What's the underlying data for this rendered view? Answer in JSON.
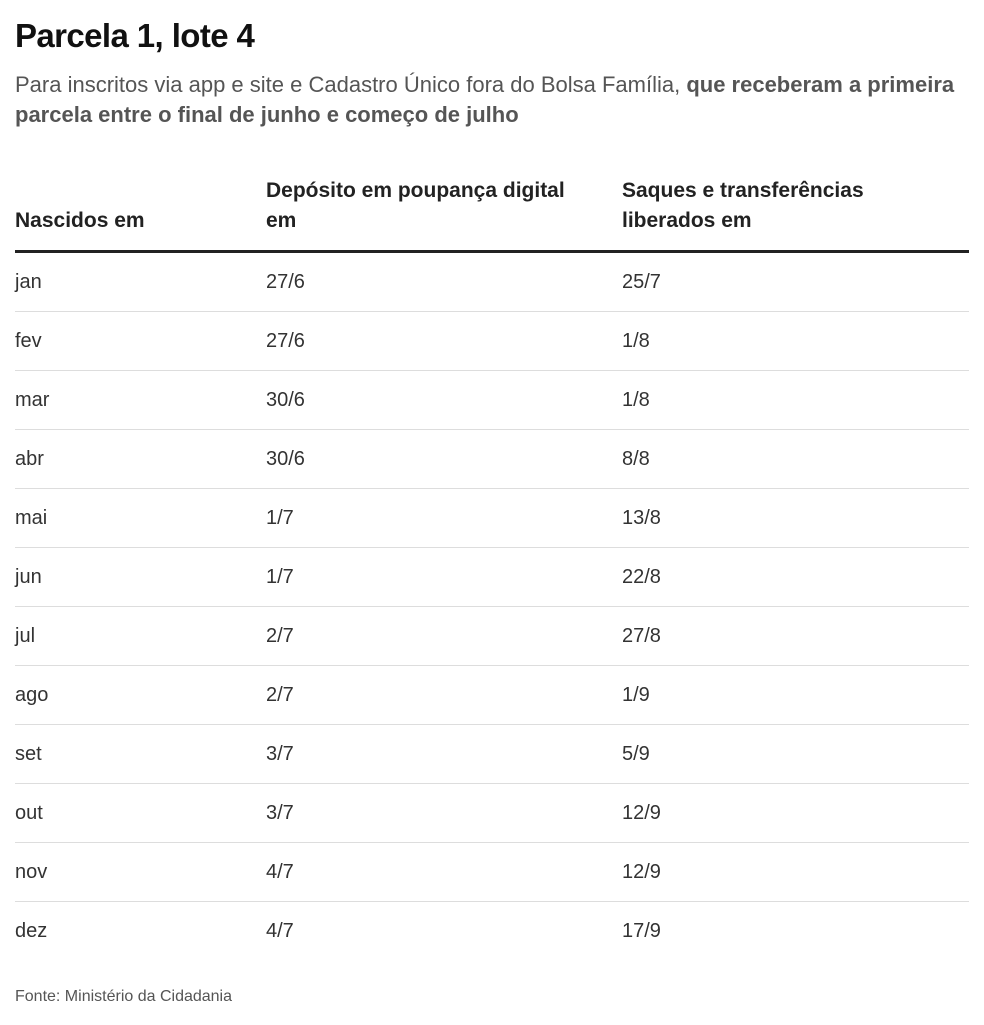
{
  "chart_data": {
    "type": "table",
    "title": "Parcela 1, lote 4",
    "subtitle": {
      "regular": "Para inscritos via app e site e Cadastro Único fora do Bolsa Família, ",
      "bold": "que receberam a primeira parcela entre o final de junho e começo de julho"
    },
    "columns": [
      "Nascidos em",
      "Depósito em poupança digital em",
      "Saques e transferências liberados em"
    ],
    "rows": [
      [
        "jan",
        "27/6",
        "25/7"
      ],
      [
        "fev",
        "27/6",
        "1/8"
      ],
      [
        "mar",
        "30/6",
        "1/8"
      ],
      [
        "abr",
        "30/6",
        "8/8"
      ],
      [
        "mai",
        "1/7",
        "13/8"
      ],
      [
        "jun",
        "1/7",
        "22/8"
      ],
      [
        "jul",
        "2/7",
        "27/8"
      ],
      [
        "ago",
        "2/7",
        "1/9"
      ],
      [
        "set",
        "3/7",
        "5/9"
      ],
      [
        "out",
        "3/7",
        "12/9"
      ],
      [
        "nov",
        "4/7",
        "12/9"
      ],
      [
        "dez",
        "4/7",
        "17/9"
      ]
    ],
    "source": "Fonte: Ministério da Cidadania"
  }
}
